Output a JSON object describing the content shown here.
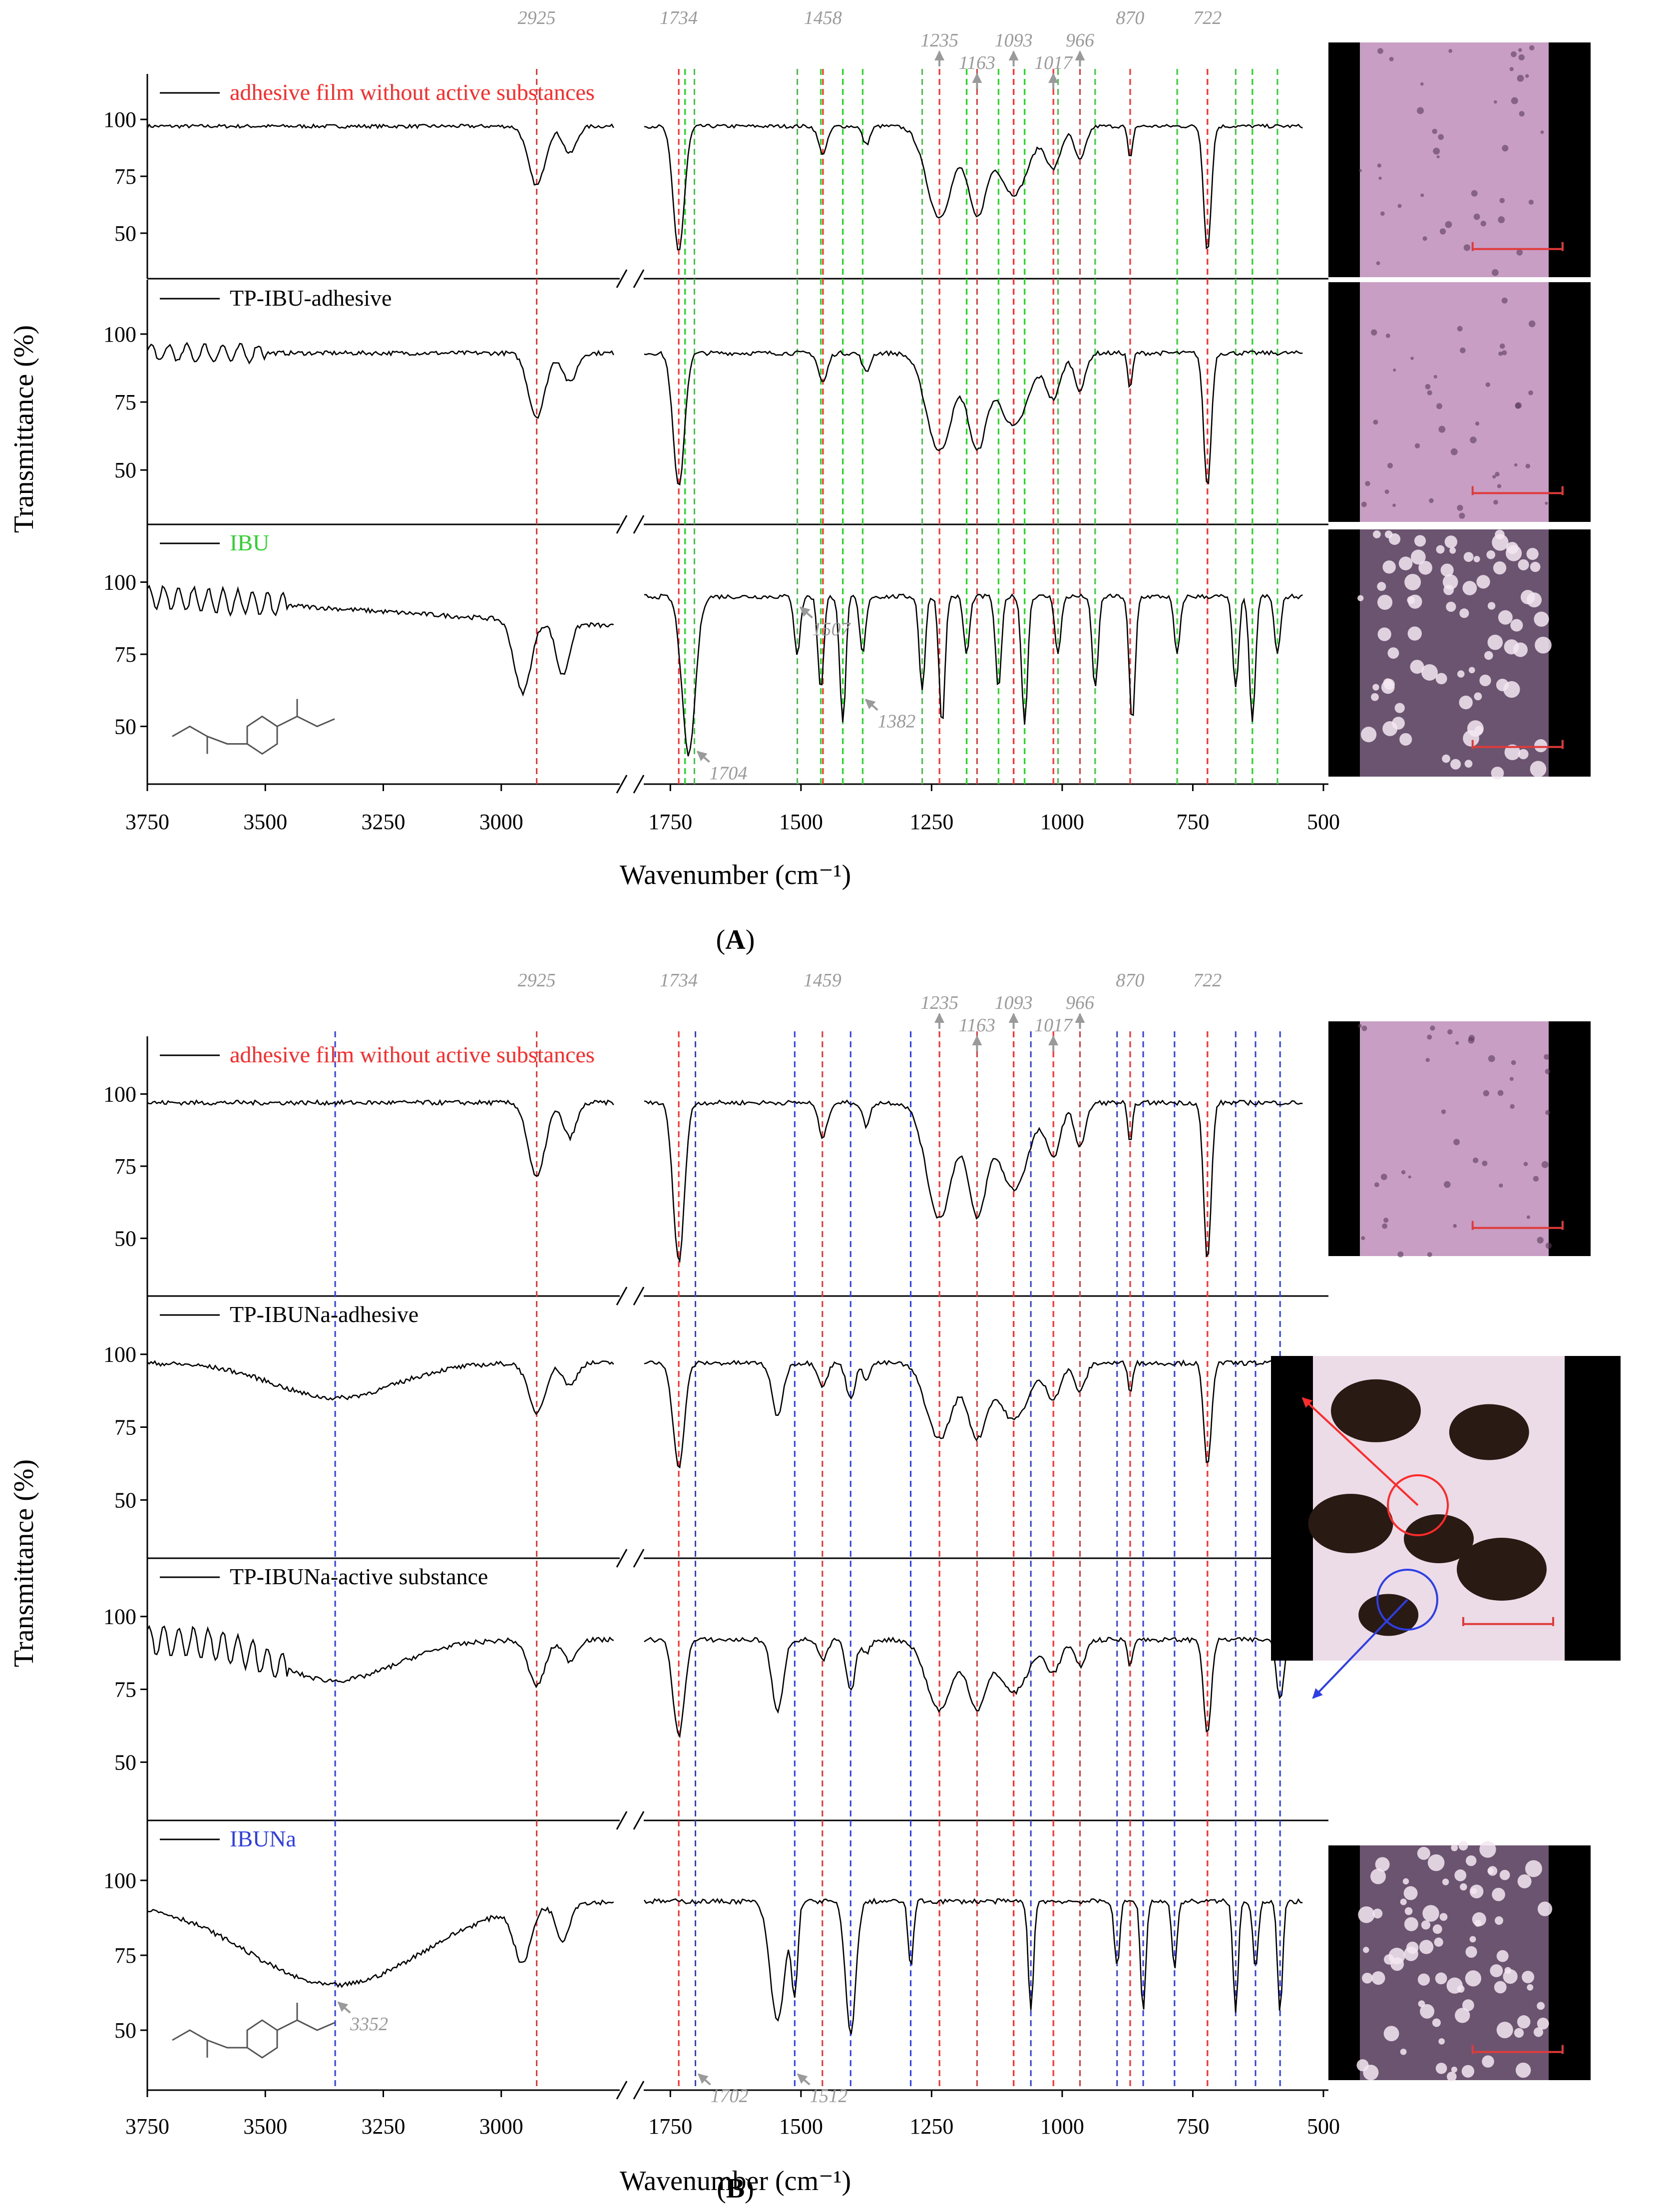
{
  "figure": {
    "panel_labels": [
      "A",
      "B"
    ],
    "colors": {
      "red": "#ff2a2a",
      "green": "#2fd12f",
      "blue": "#2f3fe8",
      "gray": "#9a9a9a",
      "scale_bar": "#e03a3a"
    },
    "micrograph_tints": [
      "pink-light",
      "pink-light",
      "dark-crystals",
      "pink-light",
      "dark-blotches",
      "dark-crystals"
    ]
  },
  "chart_data": [
    {
      "type": "line",
      "panel": "A",
      "xlabel": "Wavenumber (cm⁻¹)",
      "ylabel": "Transmittance (%)",
      "x_range": [
        3750,
        500
      ],
      "x_break": [
        2750,
        1800
      ],
      "x_ticks": [
        3750,
        3500,
        3250,
        3000,
        1750,
        1500,
        1250,
        1000,
        750,
        500
      ],
      "y_ticks": [
        50,
        75,
        100
      ],
      "ylim": [
        30,
        120
      ],
      "series": [
        {
          "name": "adhesive film without active substances",
          "name_color": "#ff2a2a"
        },
        {
          "name": "TP-IBU-adhesive",
          "name_color": "#000000"
        },
        {
          "name": "IBU",
          "name_color": "#2fd12f"
        }
      ],
      "red_lines": [
        2925,
        1734,
        1458,
        1235,
        1163,
        1093,
        1017,
        966,
        870,
        722
      ],
      "green_lines": [
        1722,
        1704,
        1507,
        1462,
        1420,
        1382,
        1268,
        1183,
        1122,
        1072,
        1008,
        937,
        780,
        668,
        636,
        588
      ],
      "top_labels": [
        {
          "text": "2925",
          "x": 2925,
          "row": 1
        },
        {
          "text": "1734",
          "x": 1734,
          "row": 1
        },
        {
          "text": "1458",
          "x": 1458,
          "row": 1
        },
        {
          "text": "1235",
          "x": 1235,
          "row": 0,
          "arrow": true
        },
        {
          "text": "1163",
          "x": 1163,
          "row": -1,
          "arrow": true
        },
        {
          "text": "1093",
          "x": 1093,
          "row": 0,
          "arrow": true
        },
        {
          "text": "1017",
          "x": 1017,
          "row": -1,
          "arrow": true
        },
        {
          "text": "966",
          "x": 966,
          "row": 0,
          "arrow": true
        },
        {
          "text": "870",
          "x": 870,
          "row": 1
        },
        {
          "text": "722",
          "x": 722,
          "row": 1
        }
      ],
      "inner_labels": [
        {
          "text": "1507",
          "x": 1507,
          "y": 92,
          "sub": 2
        },
        {
          "text": "1704",
          "x": 1704,
          "y": 42,
          "sub": 2
        },
        {
          "text": "1382",
          "x": 1382,
          "y": 60,
          "sub": 2
        }
      ]
    },
    {
      "type": "line",
      "panel": "B",
      "xlabel": "Wavenumber (cm⁻¹)",
      "ylabel": "Transmittance (%)",
      "x_range": [
        3750,
        500
      ],
      "x_break": [
        2750,
        1800
      ],
      "x_ticks": [
        3750,
        3500,
        3250,
        3000,
        1750,
        1500,
        1250,
        1000,
        750,
        500
      ],
      "y_ticks": [
        50,
        75,
        100
      ],
      "ylim": [
        30,
        120
      ],
      "series": [
        {
          "name": "adhesive film without active substances",
          "name_color": "#ff2a2a"
        },
        {
          "name": "TP-IBUNa-adhesive",
          "name_color": "#000000"
        },
        {
          "name": "TP-IBUNa-active substance",
          "name_color": "#000000"
        },
        {
          "name": "IBUNa",
          "name_color": "#2f3fe8"
        }
      ],
      "red_lines": [
        2925,
        1734,
        1459,
        1235,
        1163,
        1093,
        1017,
        966,
        870,
        722
      ],
      "blue_lines": [
        3352,
        1702,
        1512,
        1405,
        1290,
        1060,
        895,
        845,
        785,
        668,
        630,
        583
      ],
      "top_labels": [
        {
          "text": "2925",
          "x": 2925,
          "row": 1
        },
        {
          "text": "1734",
          "x": 1734,
          "row": 1
        },
        {
          "text": "1459",
          "x": 1459,
          "row": 1
        },
        {
          "text": "1235",
          "x": 1235,
          "row": 0,
          "arrow": true
        },
        {
          "text": "1163",
          "x": 1163,
          "row": -1,
          "arrow": true
        },
        {
          "text": "1093",
          "x": 1093,
          "row": 0,
          "arrow": true
        },
        {
          "text": "1017",
          "x": 1017,
          "row": -1,
          "arrow": true
        },
        {
          "text": "966",
          "x": 966,
          "row": 0,
          "arrow": true
        },
        {
          "text": "870",
          "x": 870,
          "row": 1
        },
        {
          "text": "722",
          "x": 722,
          "row": 1
        }
      ],
      "inner_labels": [
        {
          "text": "3352",
          "x": 3352,
          "y": 60,
          "sub": 3
        },
        {
          "text": "1702",
          "x": 1702,
          "y": 36,
          "sub": 3
        },
        {
          "text": "1512",
          "x": 1512,
          "y": 36,
          "sub": 3
        }
      ]
    }
  ]
}
